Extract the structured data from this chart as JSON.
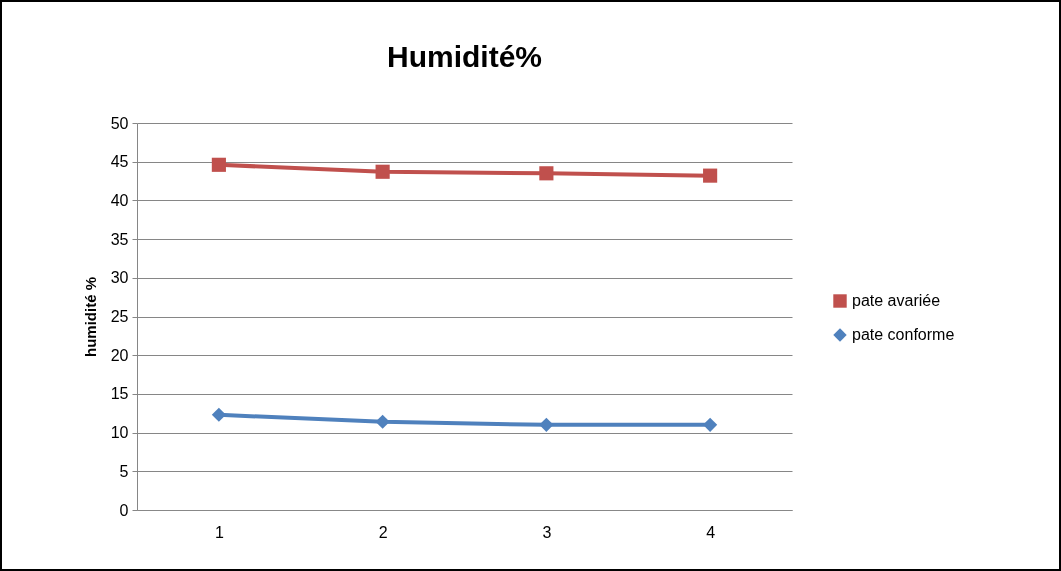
{
  "chart_data": {
    "type": "line",
    "title": "Humidité%",
    "ylabel": "humidité %",
    "categories": [
      "1",
      "2",
      "3",
      "4"
    ],
    "series": [
      {
        "name": "pate avariée",
        "color": "#c0504d",
        "marker": "square",
        "values": [
          44.6,
          43.7,
          43.5,
          43.2
        ]
      },
      {
        "name": "pate conforme",
        "color": "#4f81bd",
        "marker": "diamond",
        "values": [
          12.3,
          11.4,
          11.0,
          11.0
        ]
      }
    ],
    "ylim": [
      0,
      50
    ],
    "yticks": [
      0,
      5,
      10,
      15,
      20,
      25,
      30,
      35,
      40,
      45,
      50
    ],
    "grid": "y",
    "legend": "right",
    "line_style": "solid"
  }
}
